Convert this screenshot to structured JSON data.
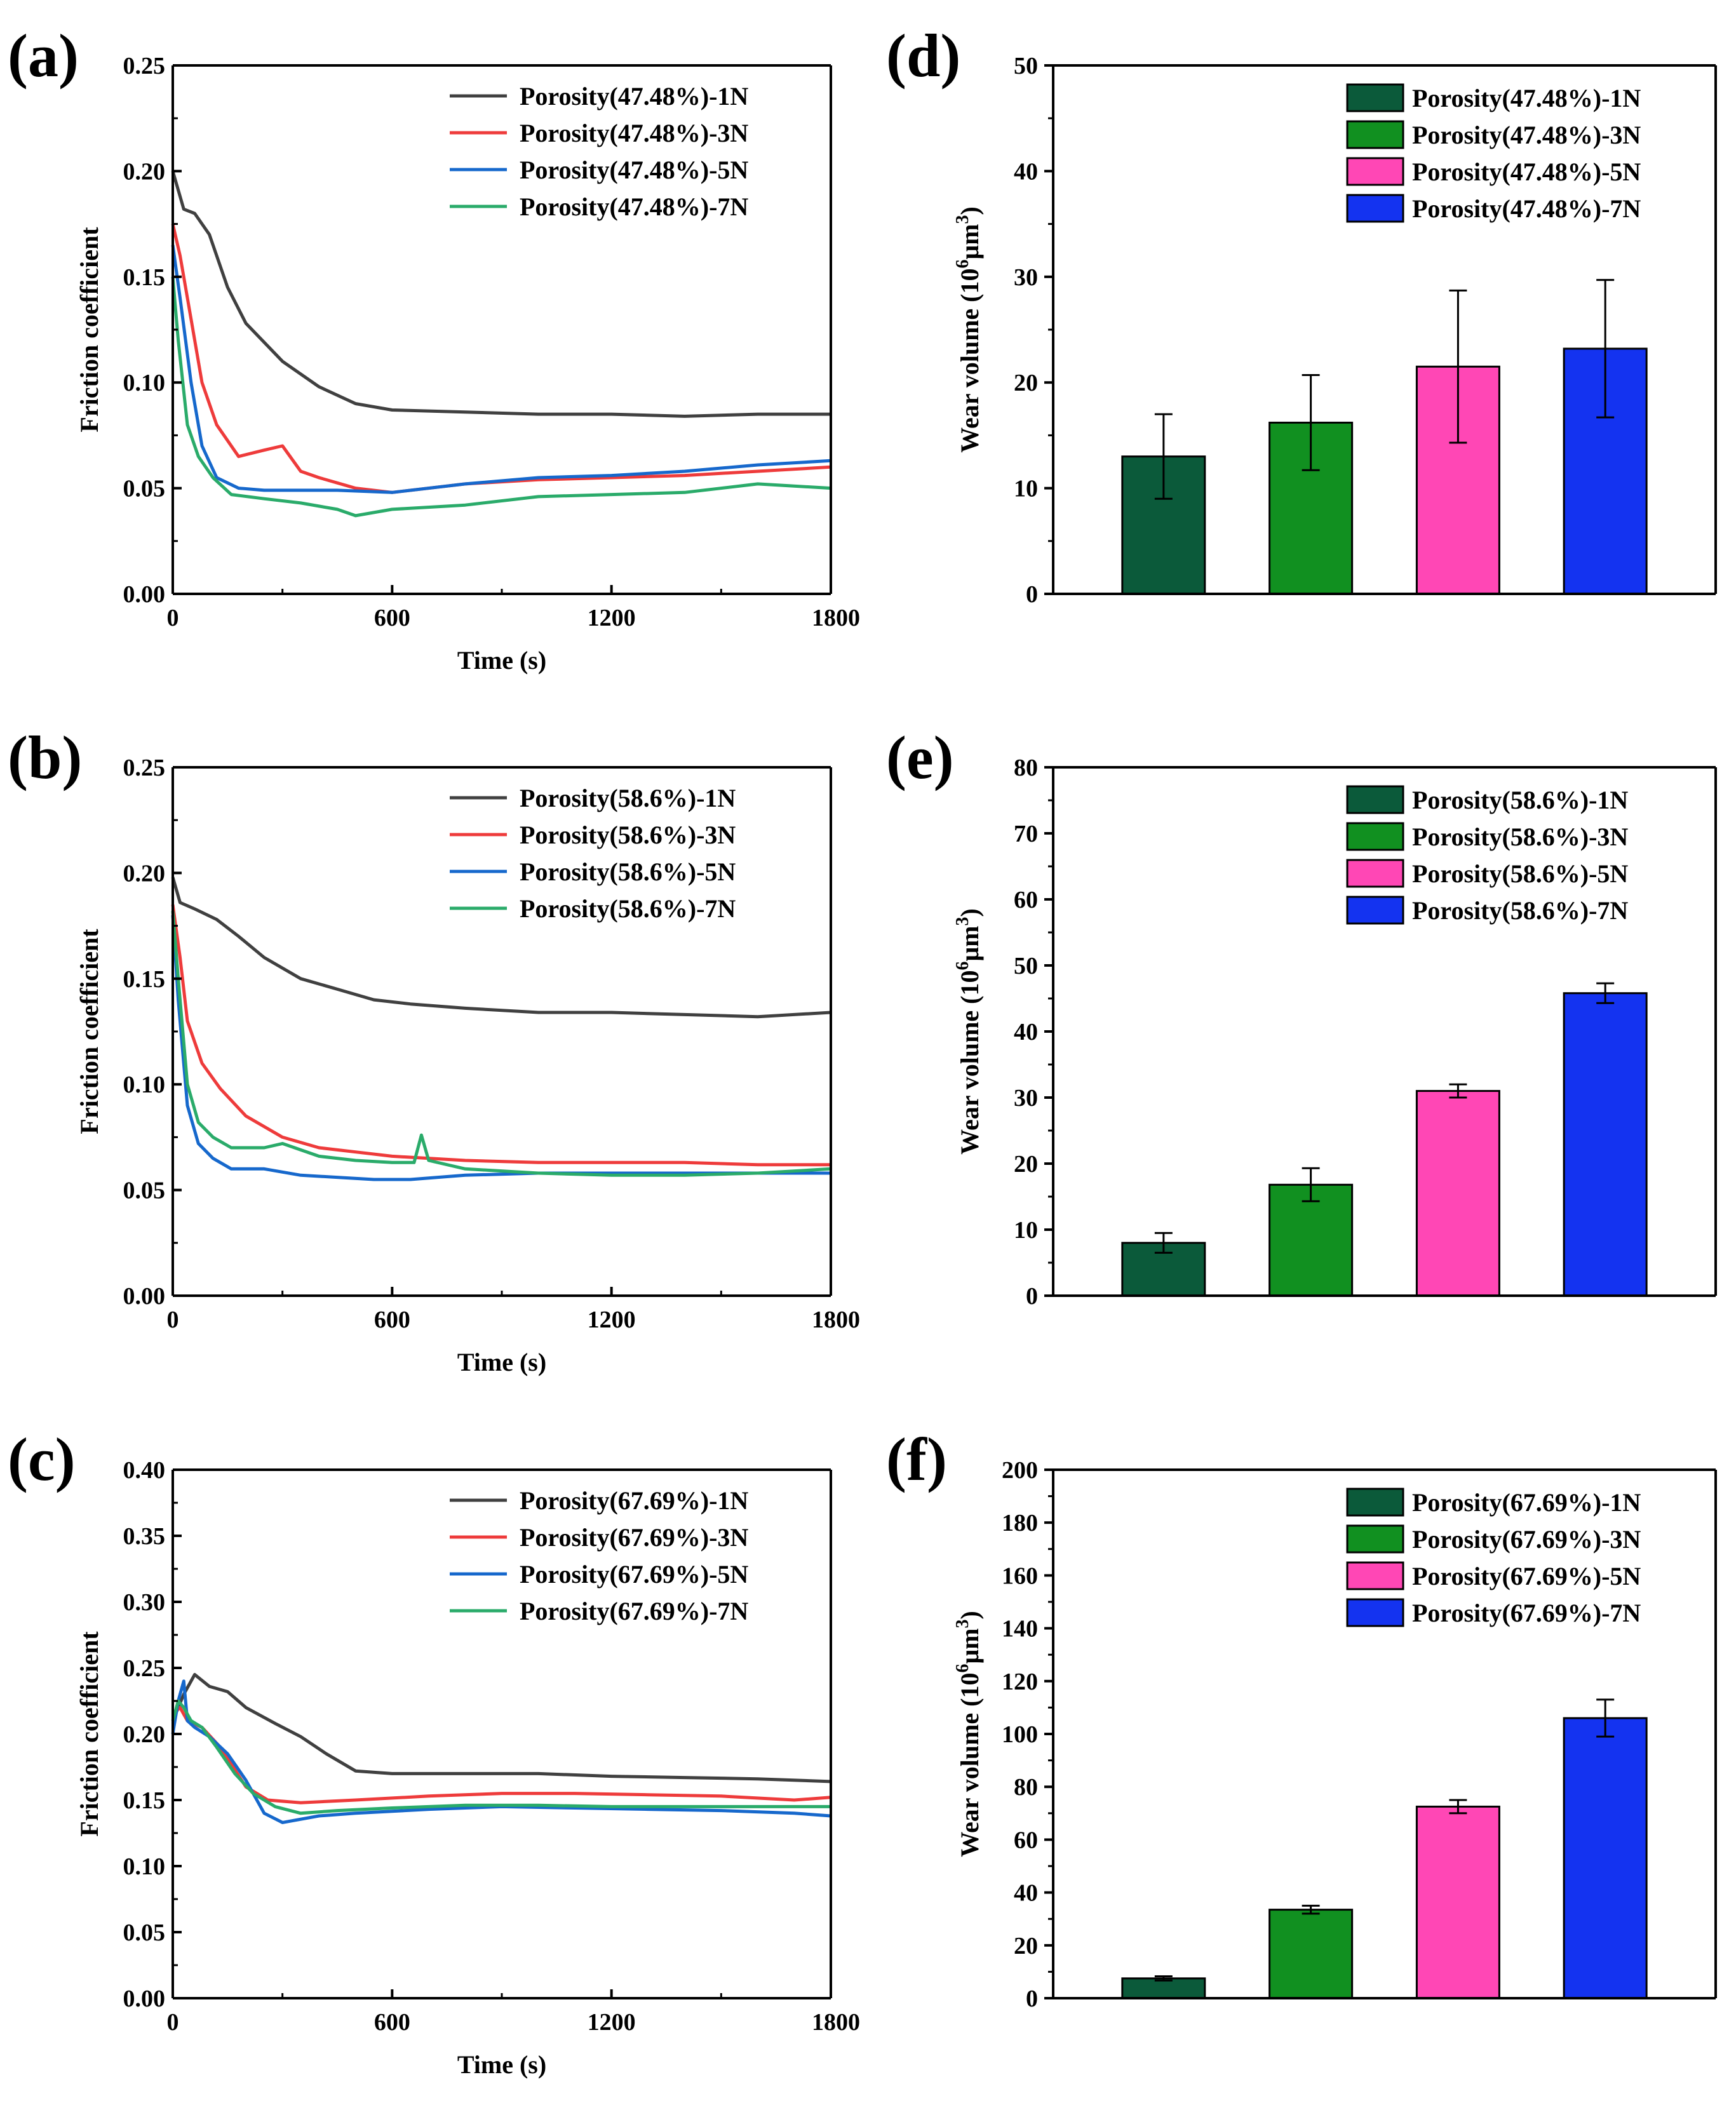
{
  "chart_data": [
    {
      "panel": "(a)",
      "type": "line",
      "xlabel": "Time (s)",
      "ylabel": "Friction coefficient",
      "xlim": [
        0,
        1800
      ],
      "ylim": [
        0,
        0.25
      ],
      "xticks": [
        "0",
        "600",
        "1200",
        "1800"
      ],
      "yticks": [
        "0.00",
        "0.05",
        "0.10",
        "0.15",
        "0.20",
        "0.25"
      ],
      "legend_position": "top-right",
      "series": [
        {
          "name": "Porosity(47.48%)-1N",
          "color": "#404040",
          "x": [
            0,
            30,
            60,
            100,
            150,
            200,
            300,
            400,
            500,
            600,
            800,
            1000,
            1200,
            1400,
            1600,
            1800
          ],
          "y": [
            0.2,
            0.182,
            0.18,
            0.17,
            0.145,
            0.128,
            0.11,
            0.098,
            0.09,
            0.087,
            0.086,
            0.085,
            0.085,
            0.084,
            0.085,
            0.085
          ]
        },
        {
          "name": "Porosity(47.48%)-3N",
          "color": "#ee3b3b",
          "x": [
            0,
            20,
            50,
            80,
            120,
            180,
            250,
            300,
            350,
            400,
            500,
            600,
            800,
            1000,
            1200,
            1400,
            1600,
            1800
          ],
          "y": [
            0.175,
            0.16,
            0.13,
            0.1,
            0.08,
            0.065,
            0.068,
            0.07,
            0.058,
            0.055,
            0.05,
            0.048,
            0.052,
            0.054,
            0.055,
            0.056,
            0.058,
            0.06
          ]
        },
        {
          "name": "Porosity(47.48%)-5N",
          "color": "#1668cc",
          "x": [
            0,
            20,
            50,
            80,
            120,
            180,
            250,
            350,
            450,
            600,
            800,
            1000,
            1200,
            1400,
            1600,
            1800
          ],
          "y": [
            0.165,
            0.14,
            0.1,
            0.07,
            0.055,
            0.05,
            0.049,
            0.049,
            0.049,
            0.048,
            0.052,
            0.055,
            0.056,
            0.058,
            0.061,
            0.063
          ]
        },
        {
          "name": "Porosity(47.48%)-7N",
          "color": "#2aab6a",
          "x": [
            0,
            15,
            40,
            70,
            110,
            160,
            250,
            350,
            450,
            500,
            600,
            800,
            1000,
            1200,
            1400,
            1600,
            1800
          ],
          "y": [
            0.15,
            0.12,
            0.08,
            0.065,
            0.055,
            0.047,
            0.045,
            0.043,
            0.04,
            0.037,
            0.04,
            0.042,
            0.046,
            0.047,
            0.048,
            0.052,
            0.05
          ]
        }
      ]
    },
    {
      "panel": "(b)",
      "type": "line",
      "xlabel": "Time (s)",
      "ylabel": "Friction coefficient",
      "xlim": [
        0,
        1800
      ],
      "ylim": [
        0,
        0.25
      ],
      "xticks": [
        "0",
        "600",
        "1200",
        "1800"
      ],
      "yticks": [
        "0.00",
        "0.05",
        "0.10",
        "0.15",
        "0.20",
        "0.25"
      ],
      "legend_position": "top-right",
      "series": [
        {
          "name": "Porosity(58.6%)-1N",
          "color": "#404040",
          "x": [
            0,
            20,
            60,
            120,
            180,
            250,
            350,
            450,
            550,
            650,
            800,
            1000,
            1200,
            1400,
            1600,
            1800
          ],
          "y": [
            0.198,
            0.186,
            0.183,
            0.178,
            0.17,
            0.16,
            0.15,
            0.145,
            0.14,
            0.138,
            0.136,
            0.134,
            0.134,
            0.133,
            0.132,
            0.134
          ]
        },
        {
          "name": "Porosity(58.6%)-3N",
          "color": "#ee3b3b",
          "x": [
            0,
            20,
            40,
            80,
            130,
            200,
            300,
            400,
            500,
            600,
            800,
            1000,
            1200,
            1400,
            1600,
            1800
          ],
          "y": [
            0.185,
            0.16,
            0.13,
            0.11,
            0.098,
            0.085,
            0.075,
            0.07,
            0.068,
            0.066,
            0.064,
            0.063,
            0.063,
            0.063,
            0.062,
            0.062
          ]
        },
        {
          "name": "Porosity(58.6%)-5N",
          "color": "#1668cc",
          "x": [
            0,
            15,
            40,
            70,
            110,
            160,
            250,
            350,
            450,
            550,
            650,
            800,
            1000,
            1200,
            1400,
            1600,
            1800
          ],
          "y": [
            0.18,
            0.14,
            0.09,
            0.072,
            0.065,
            0.06,
            0.06,
            0.057,
            0.056,
            0.055,
            0.055,
            0.057,
            0.058,
            0.058,
            0.058,
            0.058,
            0.058
          ]
        },
        {
          "name": "Porosity(58.6%)-7N",
          "color": "#2aab6a",
          "x": [
            0,
            15,
            40,
            70,
            110,
            160,
            250,
            300,
            400,
            500,
            600,
            660,
            680,
            700,
            800,
            1000,
            1200,
            1400,
            1600,
            1800
          ],
          "y": [
            0.182,
            0.15,
            0.1,
            0.082,
            0.075,
            0.07,
            0.07,
            0.072,
            0.066,
            0.064,
            0.063,
            0.063,
            0.076,
            0.064,
            0.06,
            0.058,
            0.057,
            0.057,
            0.058,
            0.06
          ]
        }
      ]
    },
    {
      "panel": "(c)",
      "type": "line",
      "xlabel": "Time (s)",
      "ylabel": "Friction coefficient",
      "xlim": [
        0,
        1800
      ],
      "ylim": [
        0,
        0.4
      ],
      "xticks": [
        "0",
        "600",
        "1200",
        "1800"
      ],
      "yticks": [
        "0.00",
        "0.05",
        "0.10",
        "0.15",
        "0.20",
        "0.25",
        "0.30",
        "0.35",
        "0.40"
      ],
      "legend_position": "top-right",
      "series": [
        {
          "name": "Porosity(67.69%)-1N",
          "color": "#404040",
          "x": [
            0,
            30,
            60,
            100,
            150,
            200,
            280,
            350,
            420,
            500,
            600,
            800,
            1000,
            1200,
            1400,
            1600,
            1800
          ],
          "y": [
            0.21,
            0.23,
            0.245,
            0.236,
            0.232,
            0.22,
            0.208,
            0.198,
            0.185,
            0.172,
            0.17,
            0.17,
            0.17,
            0.168,
            0.167,
            0.166,
            0.164
          ]
        },
        {
          "name": "Porosity(67.69%)-3N",
          "color": "#ee3b3b",
          "x": [
            0,
            20,
            40,
            80,
            130,
            200,
            260,
            350,
            500,
            700,
            900,
            1100,
            1300,
            1500,
            1700,
            1800
          ],
          "y": [
            0.215,
            0.22,
            0.21,
            0.205,
            0.19,
            0.16,
            0.15,
            0.148,
            0.15,
            0.153,
            0.155,
            0.155,
            0.154,
            0.153,
            0.15,
            0.152
          ]
        },
        {
          "name": "Porosity(67.69%)-5N",
          "color": "#1668cc",
          "x": [
            0,
            15,
            30,
            40,
            60,
            100,
            150,
            200,
            250,
            300,
            400,
            500,
            700,
            900,
            1100,
            1300,
            1500,
            1700,
            1800
          ],
          "y": [
            0.2,
            0.225,
            0.24,
            0.21,
            0.205,
            0.198,
            0.185,
            0.165,
            0.14,
            0.133,
            0.138,
            0.14,
            0.143,
            0.145,
            0.144,
            0.143,
            0.142,
            0.14,
            0.138
          ]
        },
        {
          "name": "Porosity(67.69%)-7N",
          "color": "#2aab6a",
          "x": [
            0,
            15,
            30,
            50,
            80,
            120,
            170,
            220,
            280,
            350,
            450,
            600,
            800,
            1000,
            1200,
            1400,
            1600,
            1800
          ],
          "y": [
            0.21,
            0.225,
            0.22,
            0.21,
            0.205,
            0.19,
            0.17,
            0.155,
            0.145,
            0.14,
            0.142,
            0.144,
            0.146,
            0.146,
            0.145,
            0.145,
            0.145,
            0.145
          ]
        }
      ]
    },
    {
      "panel": "(d)",
      "type": "bar",
      "ylabel_pre": "Wear volume (10",
      "ylabel_sup": "6",
      "ylabel_mid": "μm",
      "ylabel_sup2": "3",
      "ylabel_post": ")",
      "ylim": [
        0,
        50
      ],
      "yticks": [
        "0",
        "10",
        "20",
        "30",
        "40",
        "50"
      ],
      "legend_position": "top-right",
      "categories": [
        "Porosity(47.48%)-1N",
        "Porosity(47.48%)-3N",
        "Porosity(47.48%)-5N",
        "Porosity(47.48%)-7N"
      ],
      "values": [
        13.0,
        16.2,
        21.5,
        23.2
      ],
      "errors": [
        4.0,
        4.5,
        7.2,
        6.5
      ],
      "colors": [
        "#0b5a3a",
        "#119020",
        "#ff47b5",
        "#1433f0"
      ]
    },
    {
      "panel": "(e)",
      "type": "bar",
      "ylabel_pre": "Wear volume (10",
      "ylabel_sup": "6",
      "ylabel_mid": "μm",
      "ylabel_sup2": "3",
      "ylabel_post": ")",
      "ylim": [
        0,
        80
      ],
      "yticks": [
        "0",
        "10",
        "20",
        "30",
        "40",
        "50",
        "60",
        "70",
        "80"
      ],
      "legend_position": "top-right",
      "categories": [
        "Porosity(58.6%)-1N",
        "Porosity(58.6%)-3N",
        "Porosity(58.6%)-5N",
        "Porosity(58.6%)-7N"
      ],
      "values": [
        8.0,
        16.8,
        31.0,
        45.8
      ],
      "errors": [
        1.5,
        2.5,
        1.0,
        1.5
      ],
      "colors": [
        "#0b5a3a",
        "#119020",
        "#ff47b5",
        "#1433f0"
      ]
    },
    {
      "panel": "(f)",
      "type": "bar",
      "ylabel_pre": "Wear volume (10",
      "ylabel_sup": "6",
      "ylabel_mid": "μm",
      "ylabel_sup2": "3",
      "ylabel_post": ")",
      "ylim": [
        0,
        200
      ],
      "yticks": [
        "0",
        "20",
        "40",
        "60",
        "80",
        "100",
        "120",
        "140",
        "160",
        "180",
        "200"
      ],
      "legend_position": "top-right",
      "categories": [
        "Porosity(67.69%)-1N",
        "Porosity(67.69%)-3N",
        "Porosity(67.69%)-5N",
        "Porosity(67.69%)-7N"
      ],
      "values": [
        7.5,
        33.5,
        72.5,
        106.0
      ],
      "errors": [
        0.8,
        1.5,
        2.5,
        7.0
      ],
      "colors": [
        "#0b5a3a",
        "#119020",
        "#ff47b5",
        "#1433f0"
      ]
    }
  ]
}
